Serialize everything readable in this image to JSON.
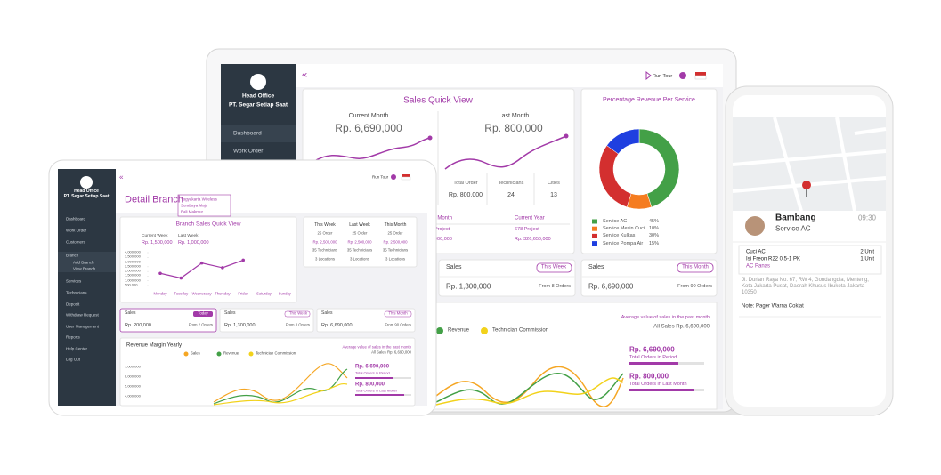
{
  "laptop": {
    "sidebar": {
      "office": "Head Office",
      "company": "PT. Segar Setiap Saat",
      "menu": [
        "Dashboard",
        "Work Order"
      ]
    },
    "header": {
      "collapse": "«",
      "run_tour": "Run Tour"
    },
    "sales_quick_view": {
      "title": "Sales Quick View",
      "current_month": {
        "label": "Current Month",
        "value": "Rp. 6,690,000"
      },
      "last_month": {
        "label": "Last Month",
        "value": "Rp. 800,000"
      },
      "stats": [
        {
          "label": "Total Order",
          "value": "Rp. 800,000"
        },
        {
          "label": "Technicians",
          "value": "24"
        },
        {
          "label": "Cities",
          "value": "13"
        }
      ],
      "table": {
        "headers": [
          "t Month",
          "Current Year"
        ],
        "rows": [
          [
            "Project",
            "678 Project"
          ],
          [
            "800,000",
            "Rp. 326,650,000"
          ]
        ]
      }
    },
    "revenue_chart": {
      "type": "pie",
      "title": "Percentage Revenue Per Service",
      "categories": [
        "Service AC",
        "Service Mesin Cuci",
        "Service Kulkas",
        "Service Pompa Air"
      ],
      "values": [
        45,
        10,
        30,
        15
      ],
      "value_labels": [
        "45%",
        "10%",
        "30%",
        "15%"
      ],
      "colors": [
        "#43a047",
        "#f57c20",
        "#d32f2f",
        "#1f3fe0"
      ]
    },
    "cards": [
      {
        "title": "Sales",
        "badge": "This Week",
        "value": "Rp. 1,300,000",
        "note": "From 8 Orders"
      },
      {
        "title": "Sales",
        "badge": "This Month",
        "value": "Rp. 6,690,000",
        "note": "From 90 Orders"
      }
    ],
    "revenue": {
      "legend": [
        {
          "name": "Revenue",
          "color": "#43a047"
        },
        {
          "name": "Technician Commission",
          "color": "#f2d21b"
        }
      ],
      "average_note": "Average value of sales in the past month",
      "all_sales": "All Sales Rp. 6,690,000",
      "metrics": [
        {
          "value": "Rp. 6,690,000",
          "label": "Total Orders in Period"
        },
        {
          "value": "Rp. 800,000",
          "label": "Total Orders in Last Month"
        }
      ]
    }
  },
  "tablet": {
    "sidebar": {
      "office": "Head Office",
      "company": "PT. Segar Setiap Saat",
      "menu": [
        "Dashboard",
        "Work Order",
        "Customers",
        "Branch",
        "Add Branch",
        "View Branch",
        "Services",
        "Technicians",
        "Deposit",
        "Withdraw Request",
        "User Management",
        "Reports",
        "Help Center",
        "Log Out"
      ]
    },
    "header": {
      "collapse": "«",
      "run_tour": "Run Tour"
    },
    "title": "Detail Branch",
    "branch_options": [
      "Yogyakarta Wireless",
      "Surabaya Maju",
      "Bali Makmur"
    ],
    "quick_view": {
      "title": "Branch Sales Quick View",
      "current_week": {
        "label": "Current Week",
        "value": "Rp. 1,500,000"
      },
      "last_week": {
        "label": "Last Week",
        "value": "Rp. 1,000,000"
      },
      "chart": {
        "type": "line",
        "color": "#a23aa8",
        "categories": [
          "Monday",
          "Tuesday",
          "Wednesday",
          "Thursday",
          "Friday",
          "Saturday",
          "Sunday"
        ],
        "values": [
          1800000,
          1300000,
          2900000,
          2400000,
          3200000,
          null,
          null
        ],
        "ylim": [
          500000,
          4000000
        ],
        "yticks": [
          {
            "value": 4000000,
            "label": "4,000,000"
          },
          {
            "value": 3500000,
            "label": "3,500,000"
          },
          {
            "value": 3000000,
            "label": "3,000,000"
          },
          {
            "value": 2500000,
            "label": "2,500,000"
          },
          {
            "value": 2000000,
            "label": "2,000,000"
          },
          {
            "value": 1500000,
            "label": "1,500,000"
          },
          {
            "value": 1000000,
            "label": "1,000,000"
          },
          {
            "value": 500000,
            "label": "500,000"
          }
        ]
      }
    },
    "summary_table": {
      "headers": [
        "This Week",
        "Last Week",
        "This Month"
      ],
      "rows": [
        [
          "25 Order",
          "25 Order",
          "25 Order"
        ],
        [
          "Rp. 2,500,000",
          "Rp. 2,500,000",
          "Rp. 2,500,000"
        ],
        [
          "35 Technicians",
          "35 Technicians",
          "35 Technicians"
        ],
        [
          "3 Locations",
          "3 Locations",
          "3 Locations"
        ]
      ]
    },
    "cards": [
      {
        "title": "Sales",
        "badge": "Today",
        "value": "Rp. 200,000",
        "note": "From 2 Orders"
      },
      {
        "title": "Sales",
        "badge": "This Week",
        "value": "Rp. 1,300,000",
        "note": "From 8 Orders"
      },
      {
        "title": "Sales",
        "badge": "This Month",
        "value": "Rp. 6,690,000",
        "note": "From 90 Orders"
      }
    ],
    "revenue": {
      "title": "Revenue Margin Yearly",
      "legend": [
        {
          "name": "Sales",
          "color": "#f5a623"
        },
        {
          "name": "Revenue",
          "color": "#43a047"
        },
        {
          "name": "Technician Commission",
          "color": "#f2d21b"
        }
      ],
      "average_note": "Average value of sales in the past month",
      "all_sales": "All Sales Rp. 6,690,000",
      "axis_labels": [
        "7,000,000",
        "6,000,000",
        "5,000,000",
        "4,000,000"
      ],
      "metrics": [
        {
          "value": "Rp. 6,690,000",
          "label": "Total Orders in Period"
        },
        {
          "value": "Rp. 800,000",
          "label": "Total Orders in Last Month"
        }
      ]
    }
  },
  "phone": {
    "technician": "Bambang",
    "service": "Service AC",
    "time": "09:30",
    "items": [
      {
        "name": "Cuci AC",
        "qty": "2 Unit"
      },
      {
        "name": "Isi Freon R22 0.5-1 PK",
        "qty": "1 Unit"
      }
    ],
    "issue": "AC Panas",
    "address": "Jl. Durian Raya No. 67, RW 4, Gondangdia, Menteng, Kota Jakarta Pusat, Daerah Khusus Ibukota Jakarta 10350",
    "note": "Note: Pager Warna Coklat"
  }
}
